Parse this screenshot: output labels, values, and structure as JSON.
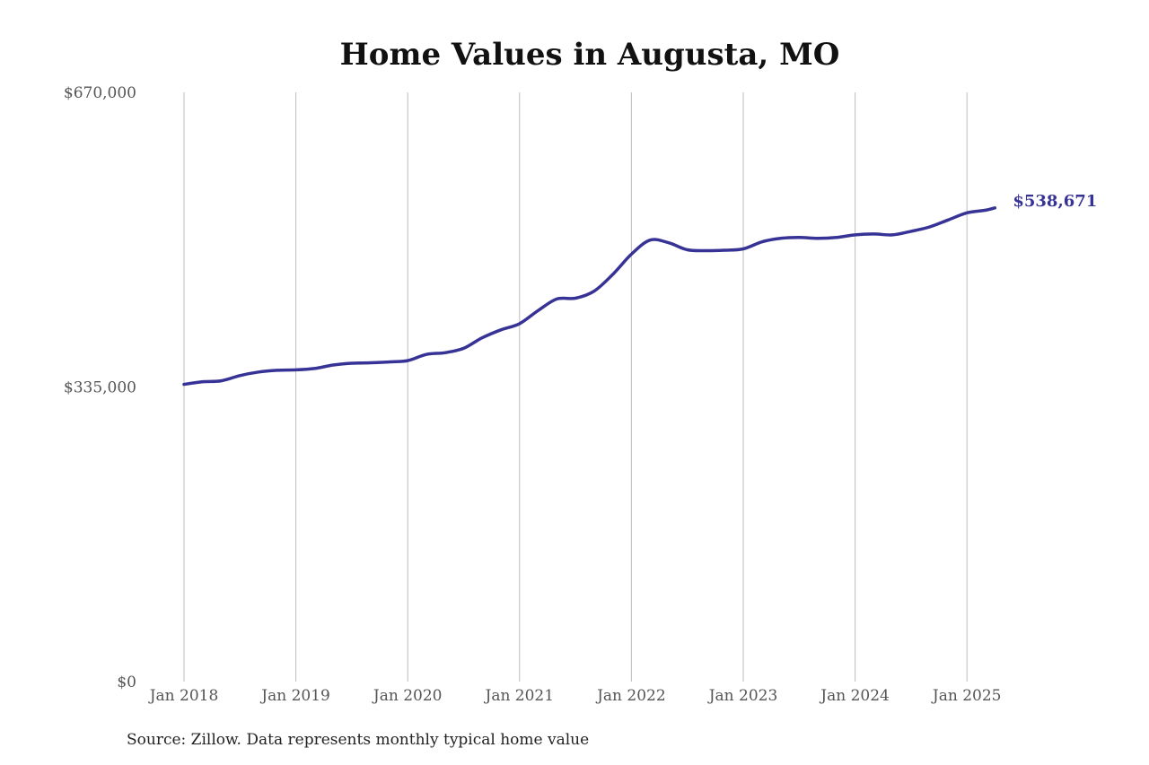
{
  "chart_data": {
    "type": "line",
    "title": "Home Values in Augusta, MO",
    "xlabel": "",
    "ylabel": "",
    "ylim": [
      0,
      670000
    ],
    "y_ticks": [
      0,
      335000,
      670000
    ],
    "y_tick_labels": [
      "$0",
      "$335,000",
      "$670,000"
    ],
    "x_ticks": [
      "2018-01",
      "2019-01",
      "2020-01",
      "2021-01",
      "2022-01",
      "2023-01",
      "2024-01",
      "2025-01"
    ],
    "x_tick_labels": [
      "Jan 2018",
      "Jan 2019",
      "Jan 2020",
      "Jan 2021",
      "Jan 2022",
      "Jan 2023",
      "Jan 2024",
      "Jan 2025"
    ],
    "grid": "vertical",
    "legend": "none",
    "end_label": "$538,671",
    "color": "#373396",
    "source": "Source: Zillow. Data represents monthly typical home value",
    "series": [
      {
        "x": [
          "2018-01",
          "2018-03",
          "2018-05",
          "2018-07",
          "2018-09",
          "2018-11",
          "2019-01",
          "2019-03",
          "2019-05",
          "2019-07",
          "2019-09",
          "2019-11",
          "2020-01",
          "2020-03",
          "2020-05",
          "2020-07",
          "2020-09",
          "2020-11",
          "2021-01",
          "2021-03",
          "2021-05",
          "2021-07",
          "2021-09",
          "2021-11",
          "2022-01",
          "2022-03",
          "2022-05",
          "2022-07",
          "2022-09",
          "2022-11",
          "2023-01",
          "2023-03",
          "2023-05",
          "2023-07",
          "2023-09",
          "2023-11",
          "2024-01",
          "2024-03",
          "2024-05",
          "2024-07",
          "2024-09",
          "2024-11",
          "2025-01",
          "2025-03",
          "2025-04"
        ],
        "values": [
          338000,
          341000,
          342000,
          348000,
          352000,
          354000,
          354500,
          356000,
          360000,
          362000,
          362500,
          363500,
          365000,
          372000,
          374000,
          379000,
          391000,
          400000,
          407000,
          422000,
          435000,
          436000,
          444000,
          463000,
          486000,
          502000,
          499000,
          491000,
          490000,
          490500,
          492000,
          500000,
          504000,
          505000,
          504000,
          505000,
          508000,
          509000,
          508000,
          512000,
          517000,
          525000,
          533000,
          536000,
          538671
        ]
      }
    ]
  }
}
